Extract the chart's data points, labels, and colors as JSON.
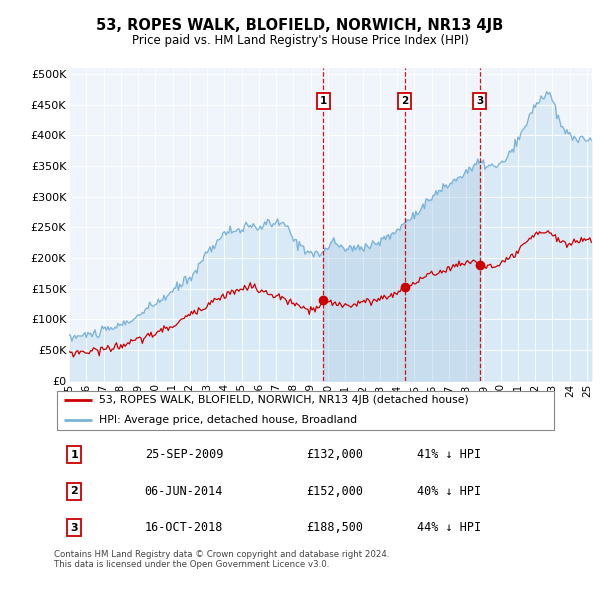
{
  "title": "53, ROPES WALK, BLOFIELD, NORWICH, NR13 4JB",
  "subtitle": "Price paid vs. HM Land Registry's House Price Index (HPI)",
  "ylabel_ticks": [
    "£0",
    "£50K",
    "£100K",
    "£150K",
    "£200K",
    "£250K",
    "£300K",
    "£350K",
    "£400K",
    "£450K",
    "£500K"
  ],
  "ytick_values": [
    0,
    50000,
    100000,
    150000,
    200000,
    250000,
    300000,
    350000,
    400000,
    450000,
    500000
  ],
  "ylim": [
    0,
    510000
  ],
  "xlim_start": 1995.0,
  "xlim_end": 2025.3,
  "hpi_color": "#7ab3d8",
  "hpi_fill_color": "#d0e4f5",
  "price_color": "#cc0000",
  "vline_color": "#cc0000",
  "grid_color": "#cccccc",
  "plot_bg_color": "#f0f5fb",
  "legend_label_price": "53, ROPES WALK, BLOFIELD, NORWICH, NR13 4JB (detached house)",
  "legend_label_hpi": "HPI: Average price, detached house, Broadland",
  "transactions": [
    {
      "num": 1,
      "date": "25-SEP-2009",
      "price": 132000,
      "pct": "41%",
      "year": 2009.73
    },
    {
      "num": 2,
      "date": "06-JUN-2014",
      "price": 152000,
      "pct": "40%",
      "year": 2014.43
    },
    {
      "num": 3,
      "date": "16-OCT-2018",
      "price": 188500,
      "pct": "44%",
      "year": 2018.79
    }
  ],
  "footer": "Contains HM Land Registry data © Crown copyright and database right 2024.\nThis data is licensed under the Open Government Licence v3.0.",
  "shade_start": 2009.73,
  "shade_end": 2018.79
}
